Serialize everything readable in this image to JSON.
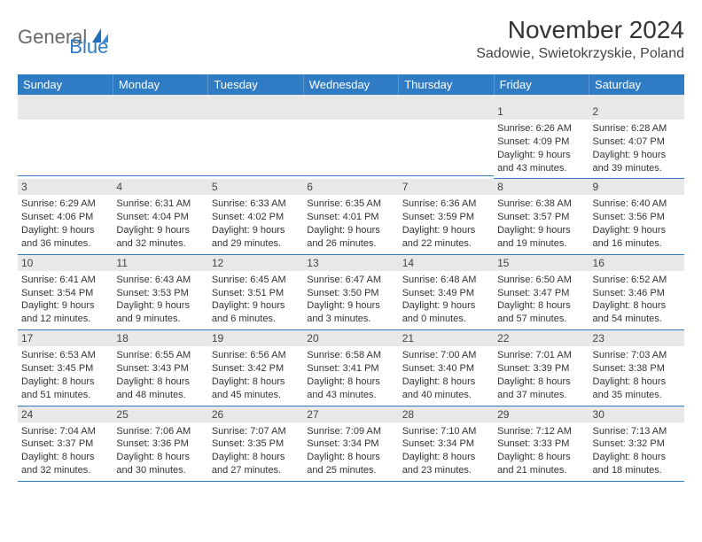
{
  "logo": {
    "part1": "General",
    "part2": "Blue"
  },
  "title": "November 2024",
  "location": "Sadowie, Swietokrzyskie, Poland",
  "colors": {
    "header_bg": "#2f7cc4",
    "header_text": "#ffffff",
    "daynum_bg": "#e8e8e8",
    "cell_border": "#2f7cc4",
    "logo_gray": "#6a6a6a",
    "logo_blue": "#2f7cc4"
  },
  "day_headers": [
    "Sunday",
    "Monday",
    "Tuesday",
    "Wednesday",
    "Thursday",
    "Friday",
    "Saturday"
  ],
  "weeks": [
    [
      null,
      null,
      null,
      null,
      null,
      {
        "n": "1",
        "sr": "6:26 AM",
        "ss": "4:09 PM",
        "dl": "9 hours and 43 minutes."
      },
      {
        "n": "2",
        "sr": "6:28 AM",
        "ss": "4:07 PM",
        "dl": "9 hours and 39 minutes."
      }
    ],
    [
      {
        "n": "3",
        "sr": "6:29 AM",
        "ss": "4:06 PM",
        "dl": "9 hours and 36 minutes."
      },
      {
        "n": "4",
        "sr": "6:31 AM",
        "ss": "4:04 PM",
        "dl": "9 hours and 32 minutes."
      },
      {
        "n": "5",
        "sr": "6:33 AM",
        "ss": "4:02 PM",
        "dl": "9 hours and 29 minutes."
      },
      {
        "n": "6",
        "sr": "6:35 AM",
        "ss": "4:01 PM",
        "dl": "9 hours and 26 minutes."
      },
      {
        "n": "7",
        "sr": "6:36 AM",
        "ss": "3:59 PM",
        "dl": "9 hours and 22 minutes."
      },
      {
        "n": "8",
        "sr": "6:38 AM",
        "ss": "3:57 PM",
        "dl": "9 hours and 19 minutes."
      },
      {
        "n": "9",
        "sr": "6:40 AM",
        "ss": "3:56 PM",
        "dl": "9 hours and 16 minutes."
      }
    ],
    [
      {
        "n": "10",
        "sr": "6:41 AM",
        "ss": "3:54 PM",
        "dl": "9 hours and 12 minutes."
      },
      {
        "n": "11",
        "sr": "6:43 AM",
        "ss": "3:53 PM",
        "dl": "9 hours and 9 minutes."
      },
      {
        "n": "12",
        "sr": "6:45 AM",
        "ss": "3:51 PM",
        "dl": "9 hours and 6 minutes."
      },
      {
        "n": "13",
        "sr": "6:47 AM",
        "ss": "3:50 PM",
        "dl": "9 hours and 3 minutes."
      },
      {
        "n": "14",
        "sr": "6:48 AM",
        "ss": "3:49 PM",
        "dl": "9 hours and 0 minutes."
      },
      {
        "n": "15",
        "sr": "6:50 AM",
        "ss": "3:47 PM",
        "dl": "8 hours and 57 minutes."
      },
      {
        "n": "16",
        "sr": "6:52 AM",
        "ss": "3:46 PM",
        "dl": "8 hours and 54 minutes."
      }
    ],
    [
      {
        "n": "17",
        "sr": "6:53 AM",
        "ss": "3:45 PM",
        "dl": "8 hours and 51 minutes."
      },
      {
        "n": "18",
        "sr": "6:55 AM",
        "ss": "3:43 PM",
        "dl": "8 hours and 48 minutes."
      },
      {
        "n": "19",
        "sr": "6:56 AM",
        "ss": "3:42 PM",
        "dl": "8 hours and 45 minutes."
      },
      {
        "n": "20",
        "sr": "6:58 AM",
        "ss": "3:41 PM",
        "dl": "8 hours and 43 minutes."
      },
      {
        "n": "21",
        "sr": "7:00 AM",
        "ss": "3:40 PM",
        "dl": "8 hours and 40 minutes."
      },
      {
        "n": "22",
        "sr": "7:01 AM",
        "ss": "3:39 PM",
        "dl": "8 hours and 37 minutes."
      },
      {
        "n": "23",
        "sr": "7:03 AM",
        "ss": "3:38 PM",
        "dl": "8 hours and 35 minutes."
      }
    ],
    [
      {
        "n": "24",
        "sr": "7:04 AM",
        "ss": "3:37 PM",
        "dl": "8 hours and 32 minutes."
      },
      {
        "n": "25",
        "sr": "7:06 AM",
        "ss": "3:36 PM",
        "dl": "8 hours and 30 minutes."
      },
      {
        "n": "26",
        "sr": "7:07 AM",
        "ss": "3:35 PM",
        "dl": "8 hours and 27 minutes."
      },
      {
        "n": "27",
        "sr": "7:09 AM",
        "ss": "3:34 PM",
        "dl": "8 hours and 25 minutes."
      },
      {
        "n": "28",
        "sr": "7:10 AM",
        "ss": "3:34 PM",
        "dl": "8 hours and 23 minutes."
      },
      {
        "n": "29",
        "sr": "7:12 AM",
        "ss": "3:33 PM",
        "dl": "8 hours and 21 minutes."
      },
      {
        "n": "30",
        "sr": "7:13 AM",
        "ss": "3:32 PM",
        "dl": "8 hours and 18 minutes."
      }
    ]
  ]
}
